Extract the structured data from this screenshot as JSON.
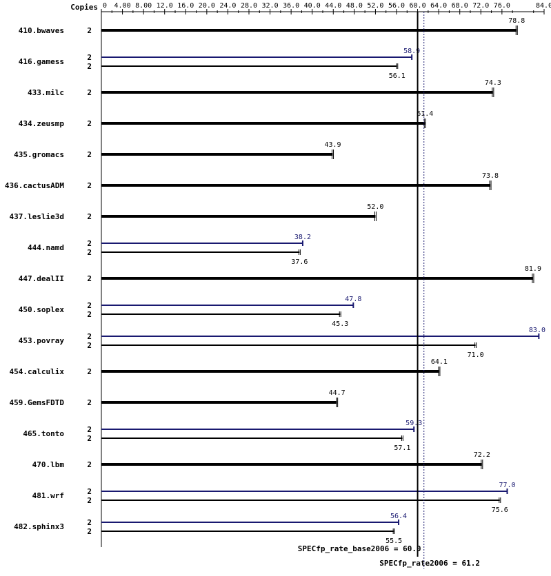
{
  "chart_data": {
    "type": "bar",
    "x_axis_header": "Copies",
    "xlim": [
      0,
      84
    ],
    "ticks": [
      "0",
      "4.00",
      "8.00",
      "12.0",
      "16.0",
      "20.0",
      "24.0",
      "28.0",
      "32.0",
      "36.0",
      "40.0",
      "44.0",
      "48.0",
      "52.0",
      "56.0",
      "60.0",
      "64.0",
      "68.0",
      "72.0",
      "76.0",
      "84.0"
    ],
    "tick_values": [
      0,
      4,
      8,
      12,
      16,
      20,
      24,
      28,
      32,
      36,
      40,
      44,
      48,
      52,
      56,
      60,
      64,
      68,
      72,
      76,
      84
    ],
    "colors": {
      "base": "#000000",
      "peak": "#191970"
    },
    "benchmarks": [
      {
        "name": "410.bwaves",
        "copies": "2",
        "base": 78.8,
        "base_label": "78.8",
        "peak": null,
        "peak_label": "",
        "peak_copies": ""
      },
      {
        "name": "416.gamess",
        "copies": "2",
        "base": 56.1,
        "base_label": "56.1",
        "peak": 58.9,
        "peak_label": "58.9",
        "peak_copies": "2"
      },
      {
        "name": "433.milc",
        "copies": "2",
        "base": 74.3,
        "base_label": "74.3",
        "peak": null,
        "peak_label": "",
        "peak_copies": ""
      },
      {
        "name": "434.zeusmp",
        "copies": "2",
        "base": 61.4,
        "base_label": "61.4",
        "peak": null,
        "peak_label": "",
        "peak_copies": ""
      },
      {
        "name": "435.gromacs",
        "copies": "2",
        "base": 43.9,
        "base_label": "43.9",
        "peak": null,
        "peak_label": "",
        "peak_copies": ""
      },
      {
        "name": "436.cactusADM",
        "copies": "2",
        "base": 73.8,
        "base_label": "73.8",
        "peak": null,
        "peak_label": "",
        "peak_copies": ""
      },
      {
        "name": "437.leslie3d",
        "copies": "2",
        "base": 52.0,
        "base_label": "52.0",
        "peak": null,
        "peak_label": "",
        "peak_copies": ""
      },
      {
        "name": "444.namd",
        "copies": "2",
        "base": 37.6,
        "base_label": "37.6",
        "peak": 38.2,
        "peak_label": "38.2",
        "peak_copies": "2"
      },
      {
        "name": "447.dealII",
        "copies": "2",
        "base": 81.9,
        "base_label": "81.9",
        "peak": null,
        "peak_label": "",
        "peak_copies": ""
      },
      {
        "name": "450.soplex",
        "copies": "2",
        "base": 45.3,
        "base_label": "45.3",
        "peak": 47.8,
        "peak_label": "47.8",
        "peak_copies": "2"
      },
      {
        "name": "453.povray",
        "copies": "2",
        "base": 71.0,
        "base_label": "71.0",
        "peak": 83.0,
        "peak_label": "83.0",
        "peak_copies": "2"
      },
      {
        "name": "454.calculix",
        "copies": "2",
        "base": 64.1,
        "base_label": "64.1",
        "peak": null,
        "peak_label": "",
        "peak_copies": ""
      },
      {
        "name": "459.GemsFDTD",
        "copies": "2",
        "base": 44.7,
        "base_label": "44.7",
        "peak": null,
        "peak_label": "",
        "peak_copies": ""
      },
      {
        "name": "465.tonto",
        "copies": "2",
        "base": 57.1,
        "base_label": "57.1",
        "peak": 59.3,
        "peak_label": "59.3",
        "peak_copies": "2"
      },
      {
        "name": "470.lbm",
        "copies": "2",
        "base": 72.2,
        "base_label": "72.2",
        "peak": null,
        "peak_label": "",
        "peak_copies": ""
      },
      {
        "name": "481.wrf",
        "copies": "2",
        "base": 75.6,
        "base_label": "75.6",
        "peak": 77.0,
        "peak_label": "77.0",
        "peak_copies": "2"
      },
      {
        "name": "482.sphinx3",
        "copies": "2",
        "base": 55.5,
        "base_label": "55.5",
        "peak": 56.4,
        "peak_label": "56.4",
        "peak_copies": "2"
      }
    ],
    "summary": {
      "base_label": "SPECfp_rate_base2006 = 60.0",
      "base_value": 60.0,
      "peak_label": "SPECfp_rate2006 = 61.2",
      "peak_value": 61.2
    }
  }
}
